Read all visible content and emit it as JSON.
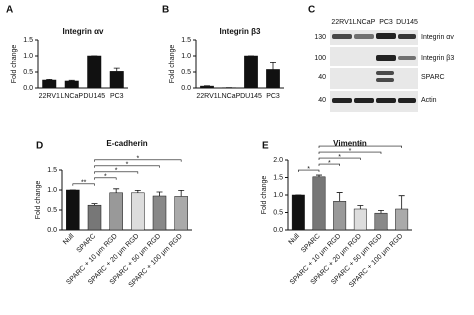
{
  "chart_data": [
    {
      "type": "bar",
      "label": "A",
      "title": "Integrin αv",
      "ylabel": "Fold change",
      "categories": [
        "22RV1",
        "LNCaP",
        "DU145",
        "PC3"
      ],
      "values": [
        0.25,
        0.22,
        1.0,
        0.52
      ],
      "errors": [
        0.02,
        0.02,
        0,
        0.1
      ],
      "color": "#111111",
      "ylim": [
        0,
        1.5
      ],
      "yticks": [
        {
          "value": 0,
          "label": "0.0"
        },
        0.5,
        {
          "value": 1,
          "label": "1.0"
        },
        1.5
      ]
    },
    {
      "type": "bar",
      "label": "B",
      "title": "Integrin β3",
      "ylabel": "Fold change",
      "categories": [
        "22RV1",
        "LNCaP",
        "DU145",
        "PC3"
      ],
      "values": [
        0.06,
        0.01,
        1.0,
        0.58
      ],
      "errors": [
        0.01,
        0,
        0,
        0.22
      ],
      "color": "#111111",
      "ylim": [
        0,
        1.5
      ],
      "yticks": [
        {
          "value": 0,
          "label": "0.0"
        },
        0.5,
        {
          "value": 1,
          "label": "1.0"
        },
        1.5
      ]
    },
    {
      "type": "bar",
      "label": "D",
      "title": "E-cadherin",
      "ylabel": "Fold change",
      "xtick_rotation": 45,
      "categories": [
        "Null",
        "SPARC",
        "SPARC + 10 μm RGD",
        "SPARC + 20 μm RGD",
        "SPARC + 50 μm RGD",
        "SPARC + 100 μm RGD"
      ],
      "values": [
        1.0,
        0.62,
        0.93,
        0.93,
        0.85,
        0.84
      ],
      "errors": [
        0,
        0.04,
        0.1,
        0.06,
        0.1,
        0.15
      ],
      "colors": [
        "#111111",
        "#777777",
        "#999999",
        "#dddddd",
        "#888888",
        "#aaaaaa"
      ],
      "ylim": [
        0,
        1.5
      ],
      "yticks": [
        {
          "value": 0,
          "label": "0.0"
        },
        0.5,
        {
          "value": 1,
          "label": "1.0"
        },
        1.5
      ],
      "significance": [
        {
          "from": 0,
          "to": 1,
          "label": "**"
        },
        {
          "from": 1,
          "to": 2,
          "label": "*"
        },
        {
          "from": 1,
          "to": 3,
          "label": "*"
        },
        {
          "from": 1,
          "to": 4,
          "label": "*"
        },
        {
          "from": 1,
          "to": 5,
          "label": "*"
        }
      ]
    },
    {
      "type": "bar",
      "label": "E",
      "title": "Vimentin",
      "ylabel": "Fold change",
      "xtick_rotation": 45,
      "categories": [
        "Null",
        "SPARC",
        "SPARC + 10 μm RGD",
        "SPARC + 20 μm RGD",
        "SPARC + 50 μm RGD",
        "SPARC + 100 μm RGD"
      ],
      "values": [
        1.0,
        1.52,
        0.82,
        0.6,
        0.48,
        0.6
      ],
      "errors": [
        0,
        0.05,
        0.25,
        0.1,
        0.08,
        0.38
      ],
      "colors": [
        "#111111",
        "#777777",
        "#999999",
        "#dddddd",
        "#888888",
        "#aaaaaa"
      ],
      "ylim": [
        0,
        2
      ],
      "yticks": [
        {
          "value": 0,
          "label": "0.0"
        },
        0.5,
        {
          "value": 1,
          "label": "1.0"
        },
        1.5,
        {
          "value": 2,
          "label": "2.0"
        }
      ],
      "significance": [
        {
          "from": 0,
          "to": 1,
          "label": "*"
        },
        {
          "from": 1,
          "to": 2,
          "label": "*"
        },
        {
          "from": 1,
          "to": 3,
          "label": "*"
        },
        {
          "from": 1,
          "to": 4,
          "label": "*"
        },
        {
          "from": 1,
          "to": 5,
          "label": "*"
        }
      ]
    }
  ],
  "blot": {
    "label": "C",
    "lanes": [
      "22RV1",
      "LNCaP",
      "PC3",
      "DU145"
    ],
    "markers": [
      "130",
      "100",
      "40",
      "40"
    ],
    "bands": [
      "Integrin αv",
      "Integrin β3",
      "SPARC",
      "Actin"
    ]
  }
}
